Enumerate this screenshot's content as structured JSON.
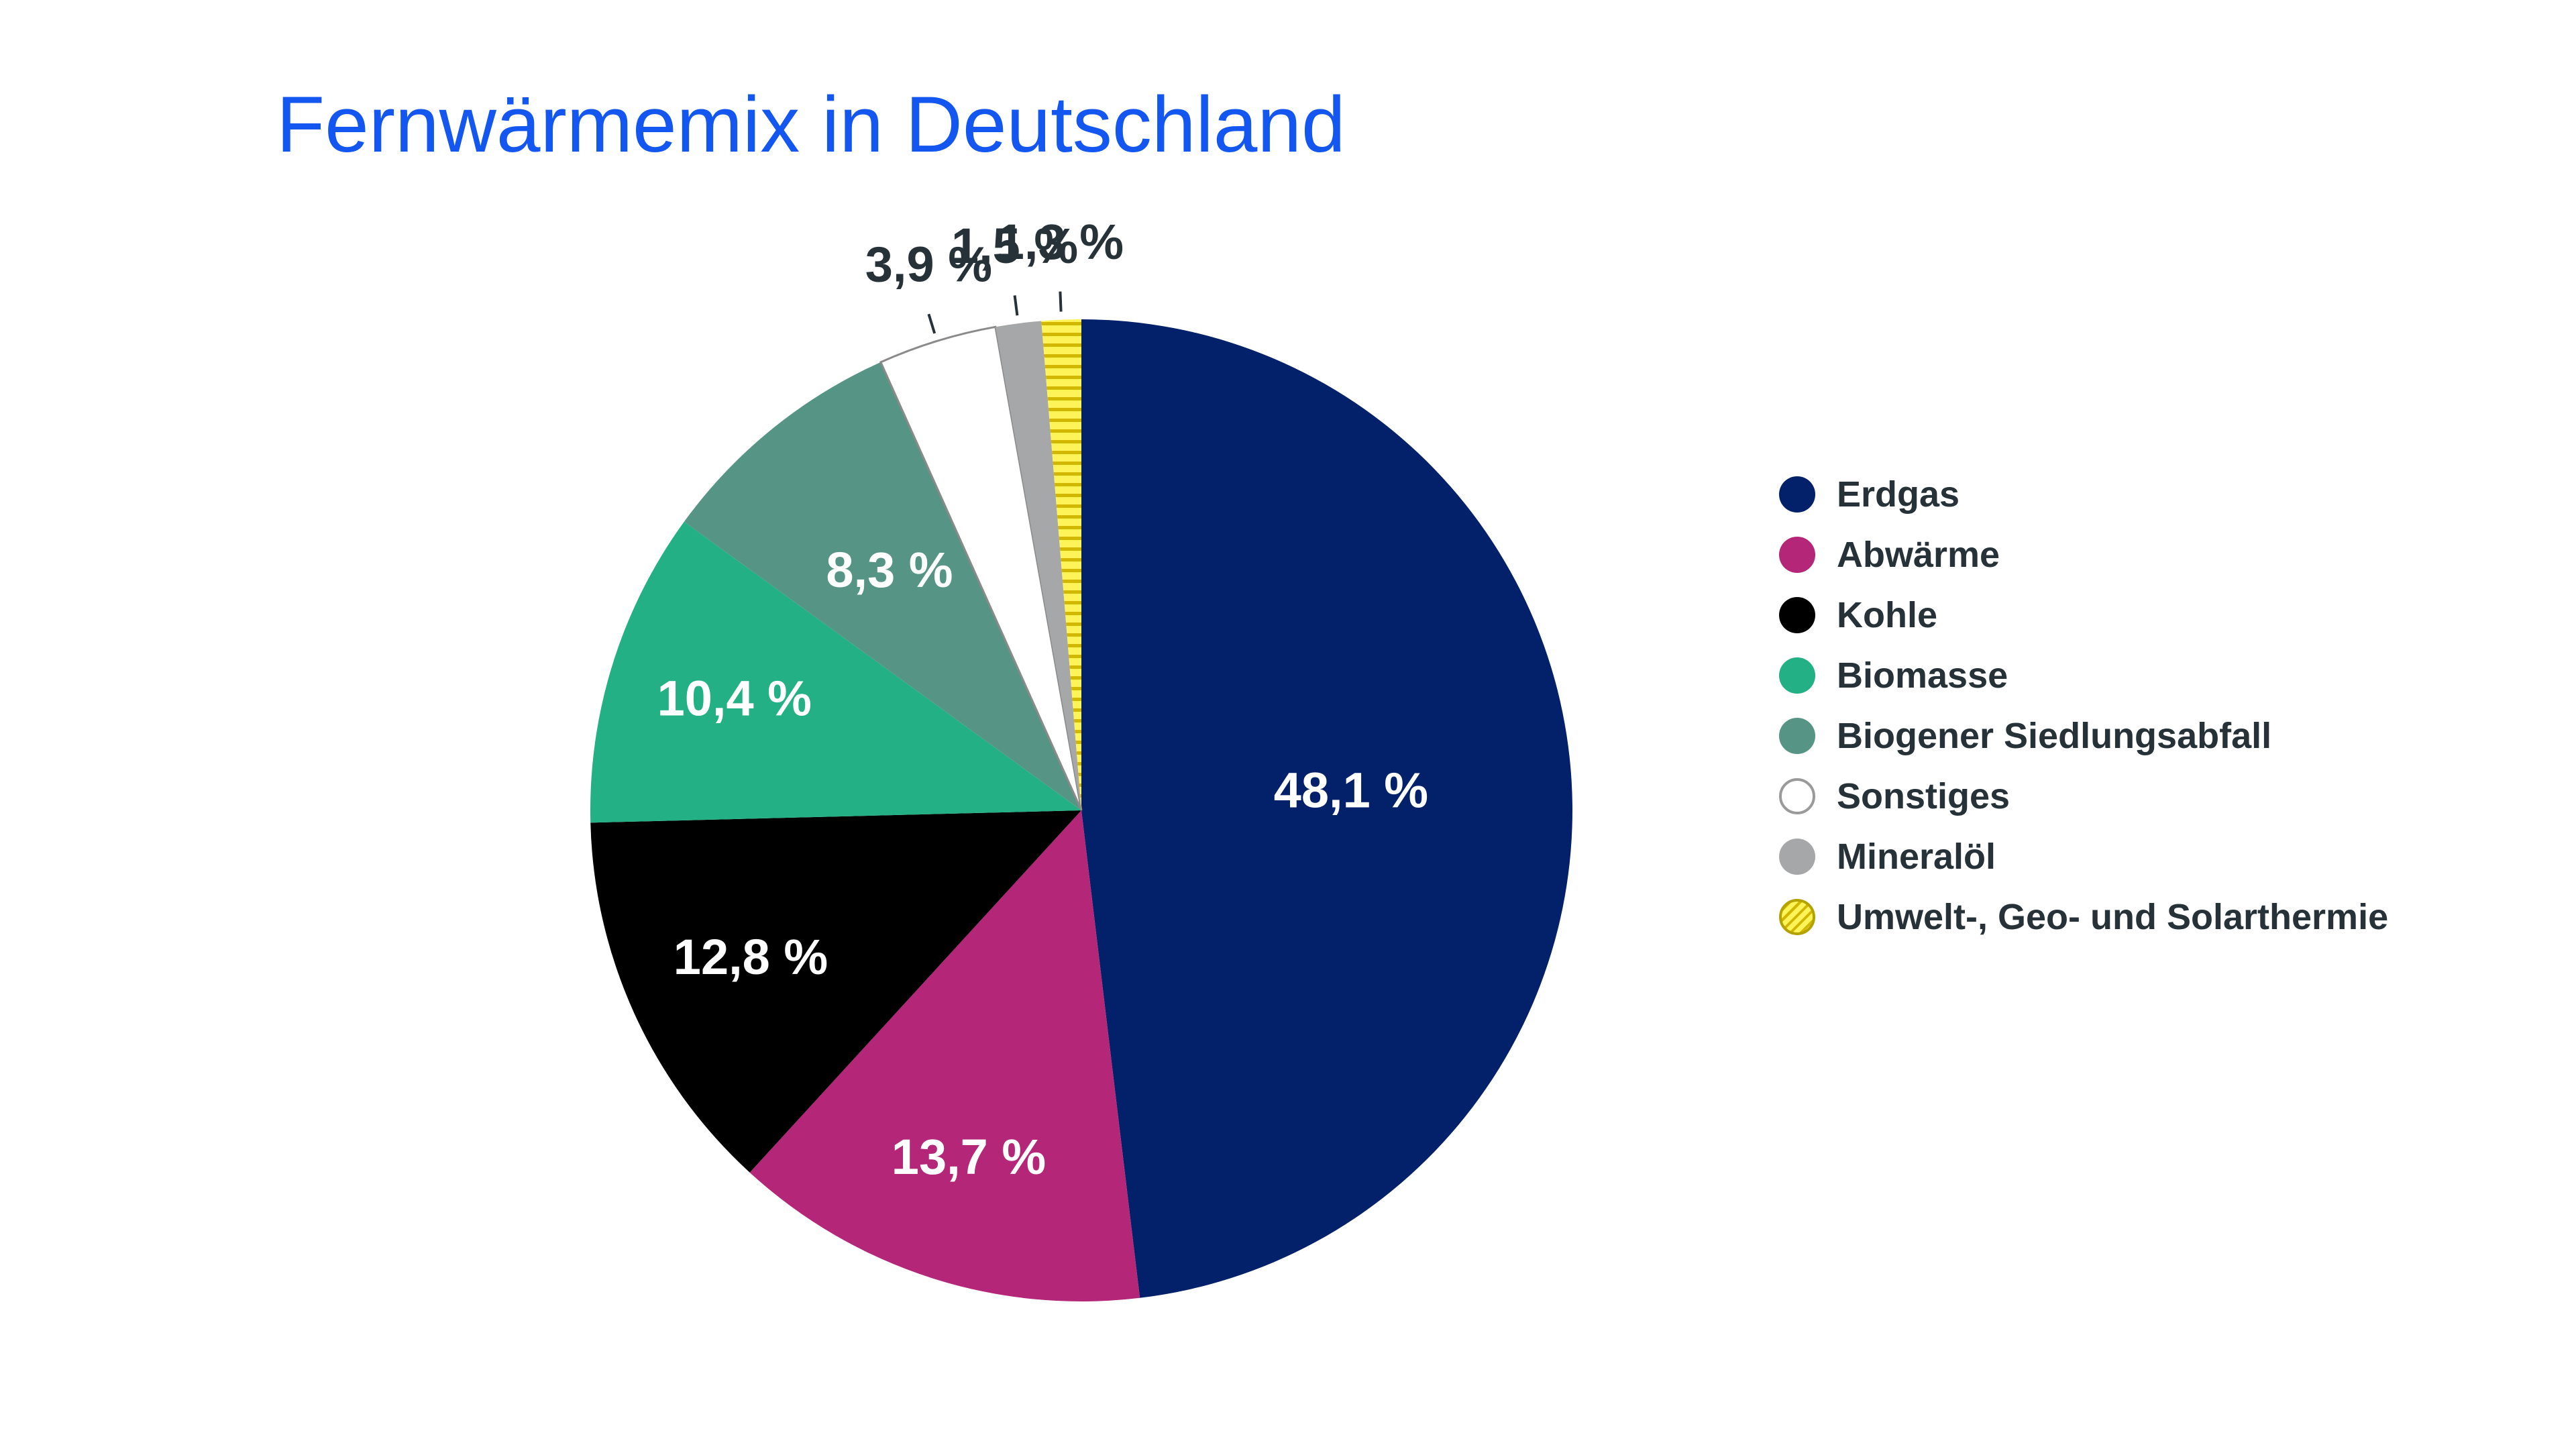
{
  "chart_data": {
    "type": "pie",
    "title": "Fernwärmemix in Deutschland",
    "value_suffix": " %",
    "start": "top",
    "direction": "clockwise",
    "legend_position": "right",
    "slices": [
      {
        "label": "Erdgas",
        "value": 48.1,
        "display": "48,1 %",
        "color": "#03206a",
        "label_color": "#ffffff"
      },
      {
        "label": "Abwärme",
        "value": 13.7,
        "display": "13,7 %",
        "color": "#b32678",
        "label_color": "#ffffff"
      },
      {
        "label": "Kohle",
        "value": 12.8,
        "display": "12,8 %",
        "color": "#000000",
        "label_color": "#ffffff"
      },
      {
        "label": "Biomasse",
        "value": 10.4,
        "display": "10,4 %",
        "color": "#23b084",
        "label_color": "#ffffff"
      },
      {
        "label": "Biogener Siedlungsabfall",
        "value": 8.3,
        "display": "8,3 %",
        "color": "#569585",
        "label_color": "#ffffff"
      },
      {
        "label": "Sonstiges",
        "value": 3.9,
        "display": "3,9 %",
        "color": "#ffffff",
        "label_color": "#263238",
        "outlined": true
      },
      {
        "label": "Mineralöl",
        "value": 1.5,
        "display": "1,5 %",
        "color": "#a5a7a8",
        "label_color": "#263238"
      },
      {
        "label": "Umwelt-, Geo- und Solarthermie",
        "value": 1.3,
        "display": "1,3 %",
        "color": "#fff35a",
        "label_color": "#263238",
        "pattern": "hatch",
        "pattern_color": "#d1b700"
      }
    ]
  }
}
